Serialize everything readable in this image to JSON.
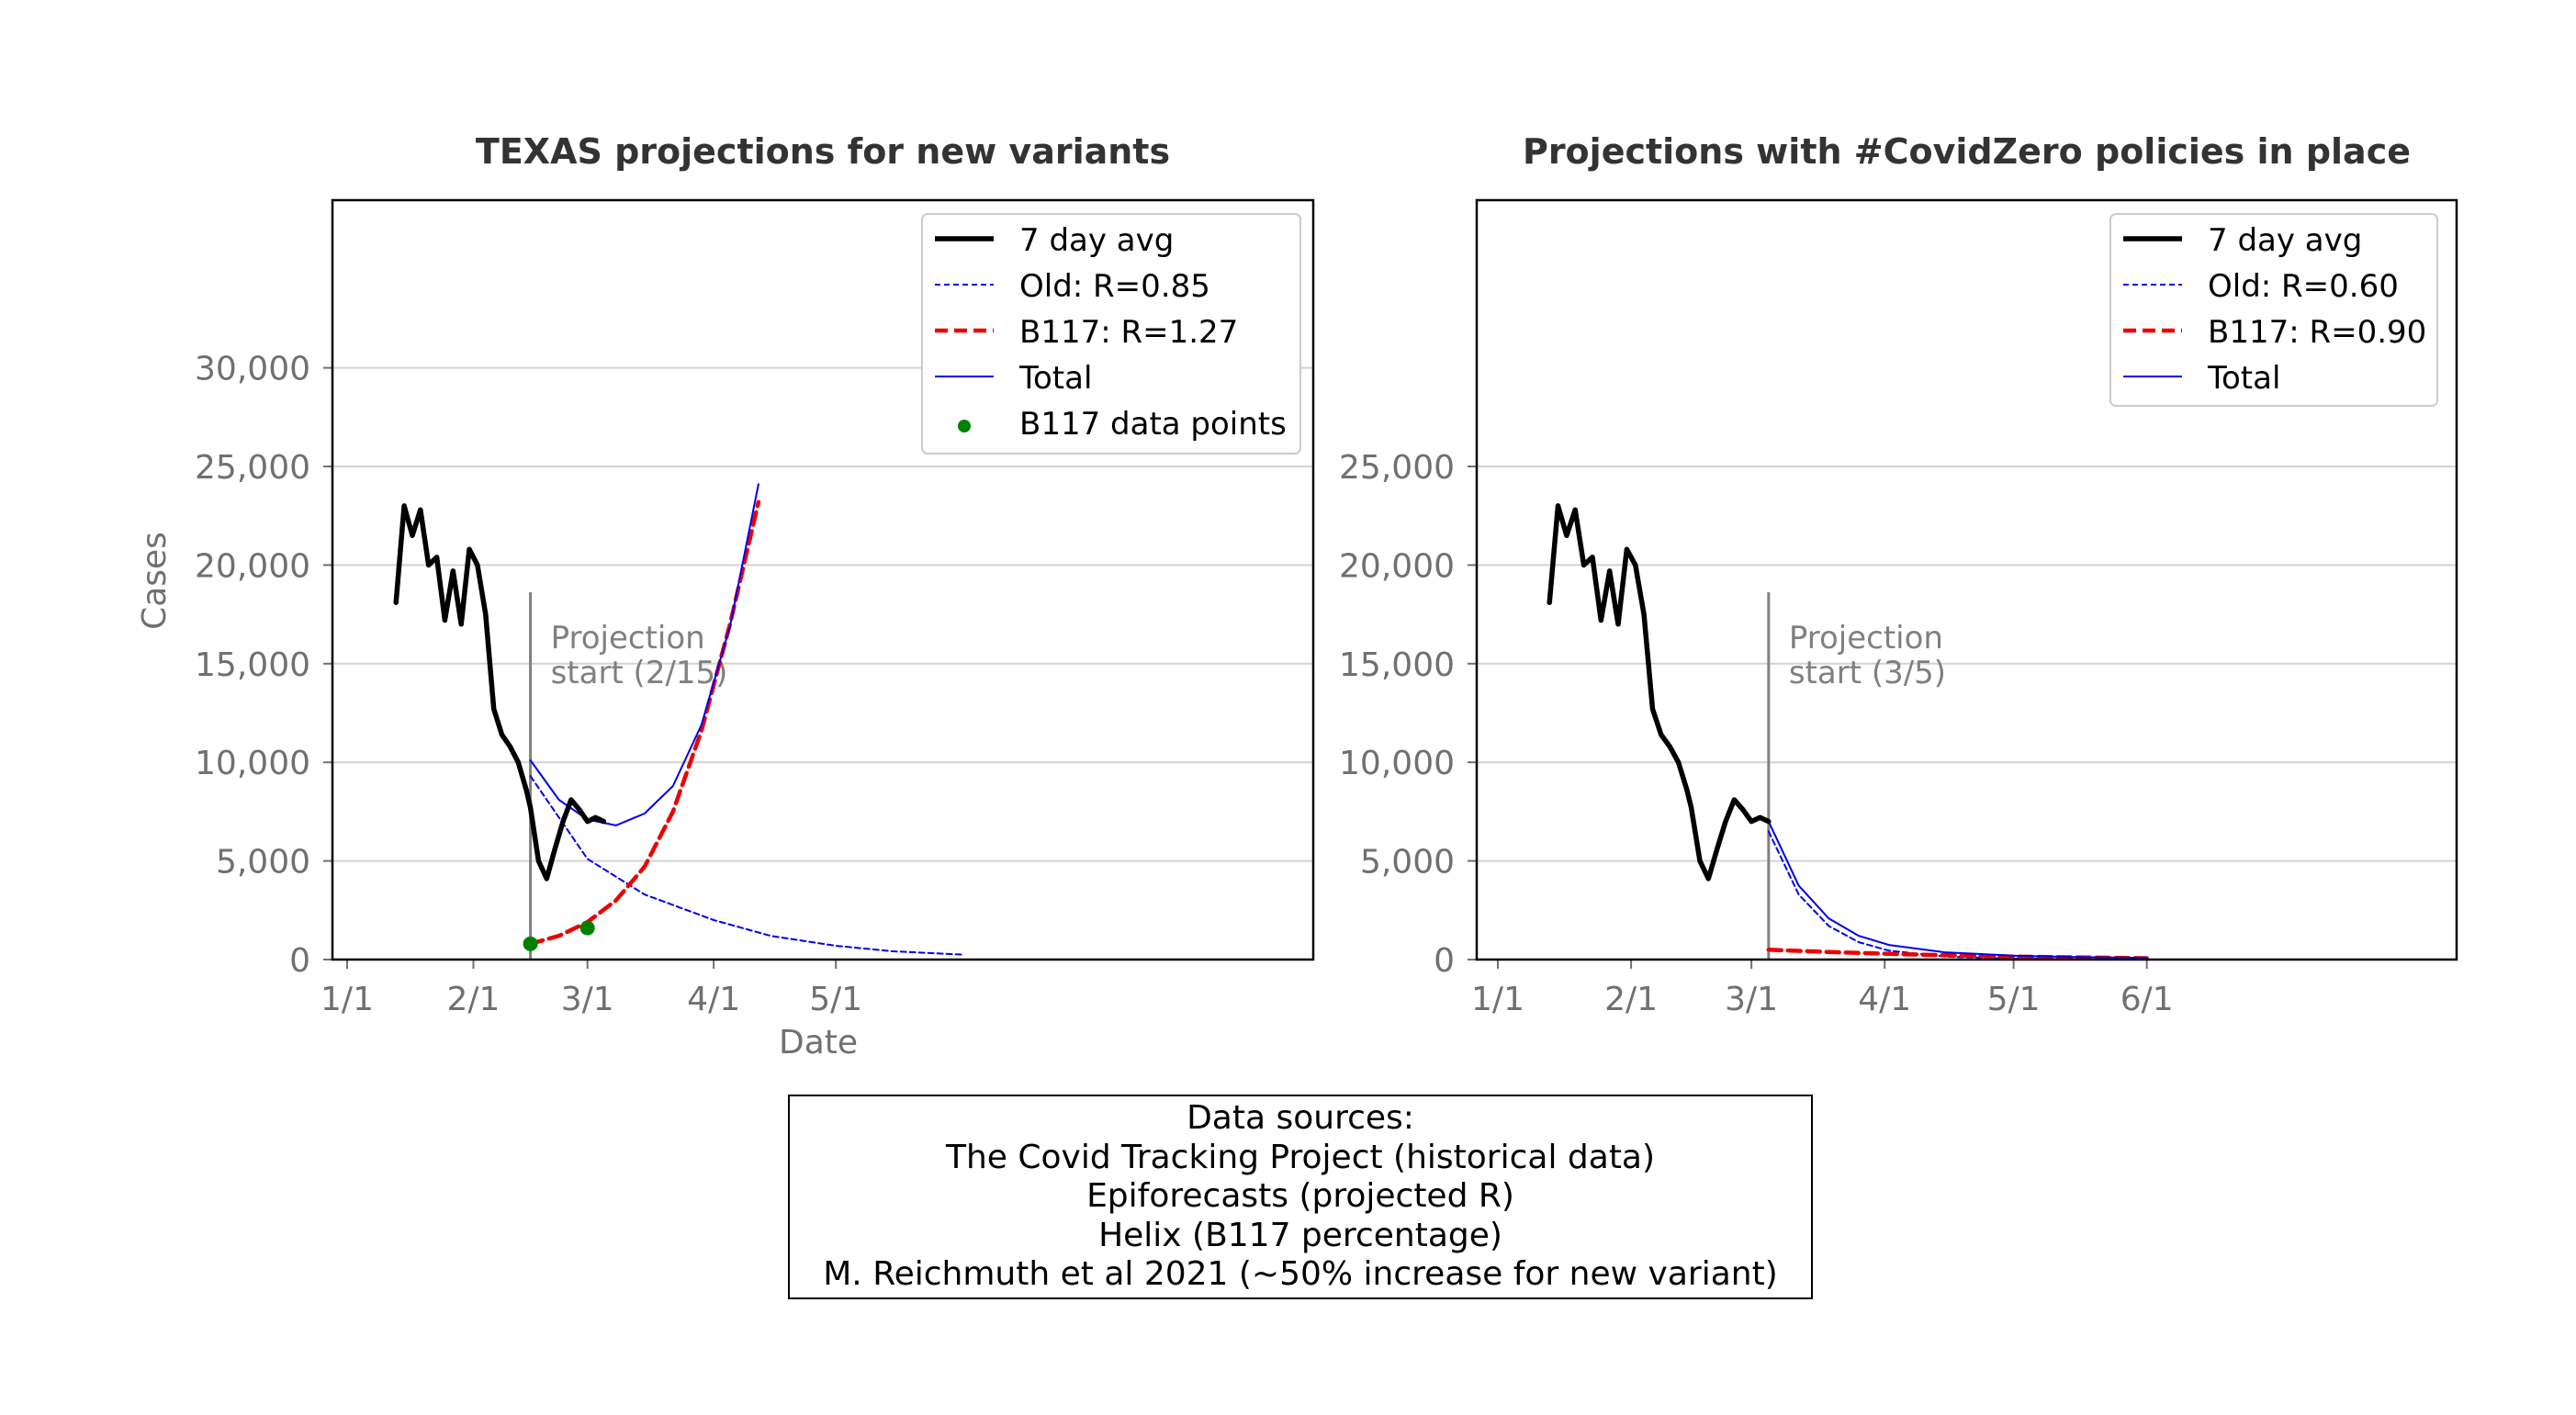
{
  "chart_data": [
    {
      "type": "line",
      "title": "TEXAS projections for new variants",
      "xlabel": "Date",
      "ylabel": "Cases",
      "x_ticks": [
        "1/1",
        "2/1",
        "3/1",
        "4/1",
        "5/1"
      ],
      "y_ticks": [
        "0",
        "5,000",
        "10,000",
        "15,000",
        "20,000",
        "25,000",
        "30,000"
      ],
      "ylim": [
        0,
        38500
      ],
      "grid": "horizontal",
      "legend_position": "top-right",
      "annotation": {
        "lines": [
          "Projection",
          "start (2/15)"
        ],
        "date": "2021-02-15"
      },
      "series": [
        {
          "name": "7 day avg",
          "style": "solid-thick",
          "color": "#000000",
          "x": [
            "2021-01-13",
            "2021-01-15",
            "2021-01-17",
            "2021-01-19",
            "2021-01-21",
            "2021-01-23",
            "2021-01-25",
            "2021-01-27",
            "2021-01-29",
            "2021-01-31",
            "2021-02-02",
            "2021-02-04",
            "2021-02-06",
            "2021-02-08",
            "2021-02-10",
            "2021-02-12",
            "2021-02-14",
            "2021-02-15",
            "2021-02-17",
            "2021-02-19",
            "2021-02-21",
            "2021-02-23",
            "2021-02-25",
            "2021-02-27",
            "2021-03-01",
            "2021-03-03",
            "2021-03-05"
          ],
          "y": [
            18100,
            23000,
            21500,
            22800,
            20000,
            20400,
            17200,
            19700,
            17000,
            20800,
            20000,
            17500,
            12700,
            11400,
            10800,
            10000,
            8600,
            7700,
            5000,
            4100,
            5600,
            7000,
            8100,
            7600,
            7000,
            7200,
            7000
          ]
        },
        {
          "name": "Old: R=0.85",
          "style": "dotted",
          "color": "#0000ee",
          "x": [
            "2021-02-15",
            "2021-03-01",
            "2021-03-15",
            "2021-04-01",
            "2021-04-15",
            "2021-05-01",
            "2021-05-15",
            "2021-06-01"
          ],
          "y": [
            9300,
            5100,
            3300,
            2000,
            1200,
            700,
            420,
            250
          ]
        },
        {
          "name": "B117: R=1.27",
          "style": "dashed",
          "color": "#ee0000",
          "x": [
            "2021-02-15",
            "2021-02-22",
            "2021-03-01",
            "2021-03-08",
            "2021-03-15",
            "2021-03-22",
            "2021-03-29",
            "2021-04-05",
            "2021-04-12"
          ],
          "y": [
            800,
            1200,
            1900,
            3000,
            4700,
            7500,
            11600,
            17000,
            23200
          ]
        },
        {
          "name": "Total",
          "style": "solid-thin",
          "color": "#0000ee",
          "x": [
            "2021-02-15",
            "2021-02-22",
            "2021-03-01",
            "2021-03-08",
            "2021-03-15",
            "2021-03-22",
            "2021-03-29",
            "2021-04-05",
            "2021-04-12"
          ],
          "y": [
            10100,
            8100,
            7100,
            6800,
            7400,
            8800,
            11900,
            16900,
            24100
          ]
        },
        {
          "name": "B117 data points",
          "style": "markers",
          "color": "#008000",
          "x": [
            "2021-02-15",
            "2021-03-01"
          ],
          "y": [
            800,
            1600
          ]
        }
      ]
    },
    {
      "type": "line",
      "title": "Projections with #CovidZero policies in place",
      "xlabel": "",
      "ylabel": "",
      "x_ticks": [
        "1/1",
        "2/1",
        "3/1",
        "4/1",
        "5/1",
        "6/1"
      ],
      "y_ticks": [
        "0",
        "5,000",
        "10,000",
        "15,000",
        "20,000",
        "25,000"
      ],
      "ylim": [
        0,
        38500
      ],
      "grid": "horizontal",
      "legend_position": "top-right",
      "annotation": {
        "lines": [
          "Projection",
          "start (3/5)"
        ],
        "date": "2021-03-05"
      },
      "series": [
        {
          "name": "7 day avg",
          "style": "solid-thick",
          "color": "#000000",
          "x": [
            "2021-01-13",
            "2021-01-15",
            "2021-01-17",
            "2021-01-19",
            "2021-01-21",
            "2021-01-23",
            "2021-01-25",
            "2021-01-27",
            "2021-01-29",
            "2021-01-31",
            "2021-02-02",
            "2021-02-04",
            "2021-02-06",
            "2021-02-08",
            "2021-02-10",
            "2021-02-12",
            "2021-02-14",
            "2021-02-15",
            "2021-02-17",
            "2021-02-19",
            "2021-02-21",
            "2021-02-23",
            "2021-02-25",
            "2021-02-27",
            "2021-03-01",
            "2021-03-03",
            "2021-03-05"
          ],
          "y": [
            18100,
            23000,
            21500,
            22800,
            20000,
            20400,
            17200,
            19700,
            17000,
            20800,
            20000,
            17500,
            12700,
            11400,
            10800,
            10000,
            8600,
            7700,
            5000,
            4100,
            5600,
            7000,
            8100,
            7600,
            7000,
            7200,
            7000
          ]
        },
        {
          "name": "Old: R=0.60",
          "style": "dotted",
          "color": "#0000ee",
          "x": [
            "2021-03-05",
            "2021-03-12",
            "2021-03-19",
            "2021-03-26",
            "2021-04-02",
            "2021-04-15",
            "2021-05-01",
            "2021-05-15",
            "2021-06-01"
          ],
          "y": [
            6500,
            3300,
            1700,
            880,
            450,
            150,
            50,
            20,
            10
          ]
        },
        {
          "name": "B117: R=0.90",
          "style": "dashed",
          "color": "#ee0000",
          "x": [
            "2021-03-05",
            "2021-03-19",
            "2021-04-02",
            "2021-04-15",
            "2021-05-01",
            "2021-05-15",
            "2021-06-01"
          ],
          "y": [
            500,
            380,
            290,
            220,
            150,
            110,
            70
          ]
        },
        {
          "name": "Total",
          "style": "solid-thin",
          "color": "#0000ee",
          "x": [
            "2021-03-05",
            "2021-03-12",
            "2021-03-19",
            "2021-03-26",
            "2021-04-02",
            "2021-04-15",
            "2021-05-01",
            "2021-05-15",
            "2021-06-01"
          ],
          "y": [
            7000,
            3750,
            2080,
            1200,
            740,
            370,
            200,
            130,
            80
          ]
        }
      ]
    }
  ],
  "sources": {
    "lines": [
      "Data sources:",
      "The Covid Tracking Project (historical data)",
      "Epiforecasts (projected R)",
      "Helix (B117 percentage)",
      "M. Reichmuth et al 2021 (~50% increase for new variant)"
    ]
  }
}
